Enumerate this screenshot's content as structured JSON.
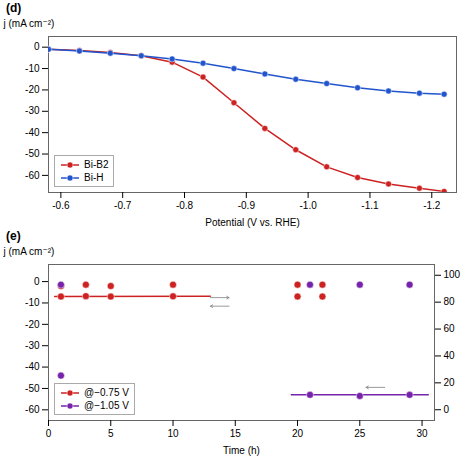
{
  "chart_data": [
    {
      "type": "line",
      "title": "(d)",
      "xlabel": "Potential (V vs. RHE)",
      "ylabel": "j (mA cm⁻²)",
      "x": [
        -0.58,
        -0.63,
        -0.68,
        -0.73,
        -0.78,
        -0.83,
        -0.88,
        -0.93,
        -0.98,
        -1.03,
        -1.08,
        -1.13,
        -1.18,
        -1.22
      ],
      "series": [
        {
          "name": "Bi-B2",
          "color": "#cc2222",
          "marker": "o",
          "values": [
            -1.0,
            -1.5,
            -2.5,
            -4.0,
            -7.0,
            -14.0,
            -26.0,
            -38.0,
            -48.0,
            -56.0,
            -61.0,
            -64.0,
            -66.0,
            -67.5
          ]
        },
        {
          "name": "Bi-H",
          "color": "#2255cc",
          "marker": "o",
          "values": [
            -1.0,
            -1.8,
            -2.8,
            -4.0,
            -5.5,
            -7.5,
            -10.0,
            -12.5,
            -15.0,
            -17.0,
            -19.0,
            -20.5,
            -21.5,
            -22.0
          ]
        }
      ],
      "xlim": [
        -0.58,
        -1.24
      ],
      "ylim": [
        -68,
        5
      ],
      "xticks": [
        -0.6,
        -0.7,
        -0.8,
        -0.9,
        {
          "value": -1.0,
          "label": "-1.0"
        },
        -1.1,
        -1.2
      ],
      "yticks": [
        0,
        -10,
        -20,
        -30,
        -40,
        -50,
        -60
      ],
      "legend": "lower left"
    },
    {
      "type": "line",
      "title": "(e)",
      "xlabel": "Time (h)",
      "ylabel": "j (mA cm⁻²)",
      "series": [
        {
          "name": "@−0.75 V",
          "color": "#cc2222",
          "type": "line",
          "x": [
            0.5,
            13.0
          ],
          "values": [
            -7.0,
            -6.8
          ]
        },
        {
          "name": "@−0.75 V",
          "color": "#cc2222",
          "type": "scatter",
          "marker": "o",
          "x": [
            1,
            3,
            5,
            10,
            20,
            22
          ],
          "values": [
            -7.0,
            -6.8,
            -7.0,
            -6.9,
            -7.0,
            -7.0
          ]
        },
        {
          "name": "@−1.05 V",
          "color": "#7722aa",
          "type": "line",
          "x": [
            19.5,
            30.5
          ],
          "values": [
            -53.0,
            -53.0
          ]
        },
        {
          "name": "@−1.05 V",
          "color": "#7722aa",
          "type": "scatter",
          "marker": "o",
          "x": [
            1,
            21,
            25,
            29
          ],
          "values": [
            -44.0,
            -53.0,
            -53.5,
            -53.0
          ]
        },
        {
          "name": "@−0.75 V",
          "color": "#cc2222",
          "type": "scatter",
          "marker": "o",
          "axis": "y2",
          "x": [
            1,
            3,
            5,
            10,
            20,
            22
          ],
          "values": [
            92,
            93,
            92,
            93,
            93,
            93
          ]
        },
        {
          "name": "@−1.05 V",
          "color": "#7722aa",
          "type": "scatter",
          "marker": "o",
          "axis": "y2",
          "x": [
            1,
            21,
            25,
            29
          ],
          "values": [
            93,
            93,
            93,
            93
          ]
        }
      ],
      "xlim": [
        0,
        31
      ],
      "ylim": [
        -65,
        8
      ],
      "xticks": [
        0,
        5,
        10,
        15,
        20,
        25,
        30
      ],
      "yticks": [
        0,
        -10,
        -20,
        -30,
        -40,
        -50,
        -60
      ],
      "y2lim": [
        -8,
        108
      ],
      "y2ticks": [
        0,
        20,
        40,
        60,
        80,
        100
      ],
      "arrows": [
        {
          "from": [
            13.0,
            -7.5
          ],
          "to": [
            14.5,
            -7.5
          ]
        },
        {
          "from": [
            14.5,
            -11.5
          ],
          "to": [
            13.0,
            -11.5
          ]
        },
        {
          "from": [
            27.0,
            -49.5
          ],
          "to": [
            25.5,
            -49.5
          ]
        }
      ],
      "legend": "lower left"
    }
  ]
}
